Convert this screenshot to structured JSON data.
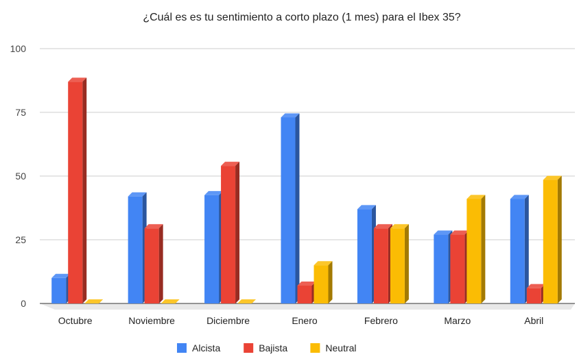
{
  "chart_data": {
    "type": "bar",
    "style": "3d",
    "title": "¿Cuál es es tu sentimiento a corto plazo (1 mes) para el Ibex 35?",
    "xlabel": "",
    "ylabel": "",
    "ylim": [
      0,
      100
    ],
    "yticks": [
      0,
      25,
      50,
      75,
      100
    ],
    "grid": true,
    "legend_position": "bottom",
    "categories": [
      "Octubre",
      "Noviembre",
      "Diciembre",
      "Enero",
      "Febrero",
      "Marzo",
      "Abril"
    ],
    "series": [
      {
        "name": "Alcista",
        "color": "#4285F4",
        "values": [
          10,
          42,
          42.5,
          73,
          37,
          27,
          41
        ]
      },
      {
        "name": "Bajista",
        "color": "#EA4335",
        "values": [
          87,
          29.5,
          54,
          7,
          29.5,
          27,
          6
        ]
      },
      {
        "name": "Neutral",
        "color": "#FBBC04",
        "values": [
          0,
          0,
          0,
          15,
          29.5,
          41,
          48.5
        ]
      }
    ]
  }
}
